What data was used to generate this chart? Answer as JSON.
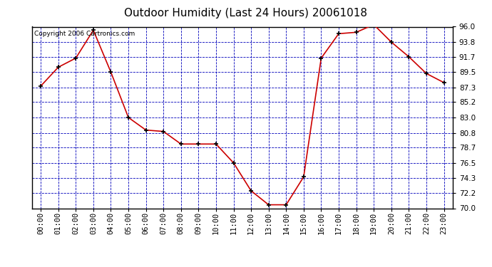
{
  "title": "Outdoor Humidity (Last 24 Hours) 20061018",
  "copyright": "Copyright 2006 Cartronics.com",
  "x_labels": [
    "00:00",
    "01:00",
    "02:00",
    "03:00",
    "04:00",
    "05:00",
    "06:00",
    "07:00",
    "08:00",
    "09:00",
    "10:00",
    "11:00",
    "12:00",
    "13:00",
    "14:00",
    "15:00",
    "16:00",
    "17:00",
    "18:00",
    "19:00",
    "20:00",
    "21:00",
    "22:00",
    "23:00"
  ],
  "y_values": [
    87.5,
    90.2,
    91.5,
    95.5,
    89.5,
    83.0,
    81.2,
    81.0,
    79.2,
    79.2,
    79.2,
    76.5,
    72.5,
    70.5,
    70.5,
    74.5,
    91.5,
    95.0,
    95.2,
    96.3,
    93.8,
    91.7,
    89.3,
    88.0
  ],
  "line_color": "#cc0000",
  "marker_color": "#000000",
  "bg_color": "#ffffff",
  "plot_bg_color": "#ffffff",
  "grid_color": "#0000bb",
  "ylim_min": 70.0,
  "ylim_max": 96.0,
  "yticks": [
    70.0,
    72.2,
    74.3,
    76.5,
    78.7,
    80.8,
    83.0,
    85.2,
    87.3,
    89.5,
    91.7,
    93.8,
    96.0
  ],
  "title_fontsize": 11,
  "tick_fontsize": 7.5,
  "copyright_fontsize": 6.5
}
